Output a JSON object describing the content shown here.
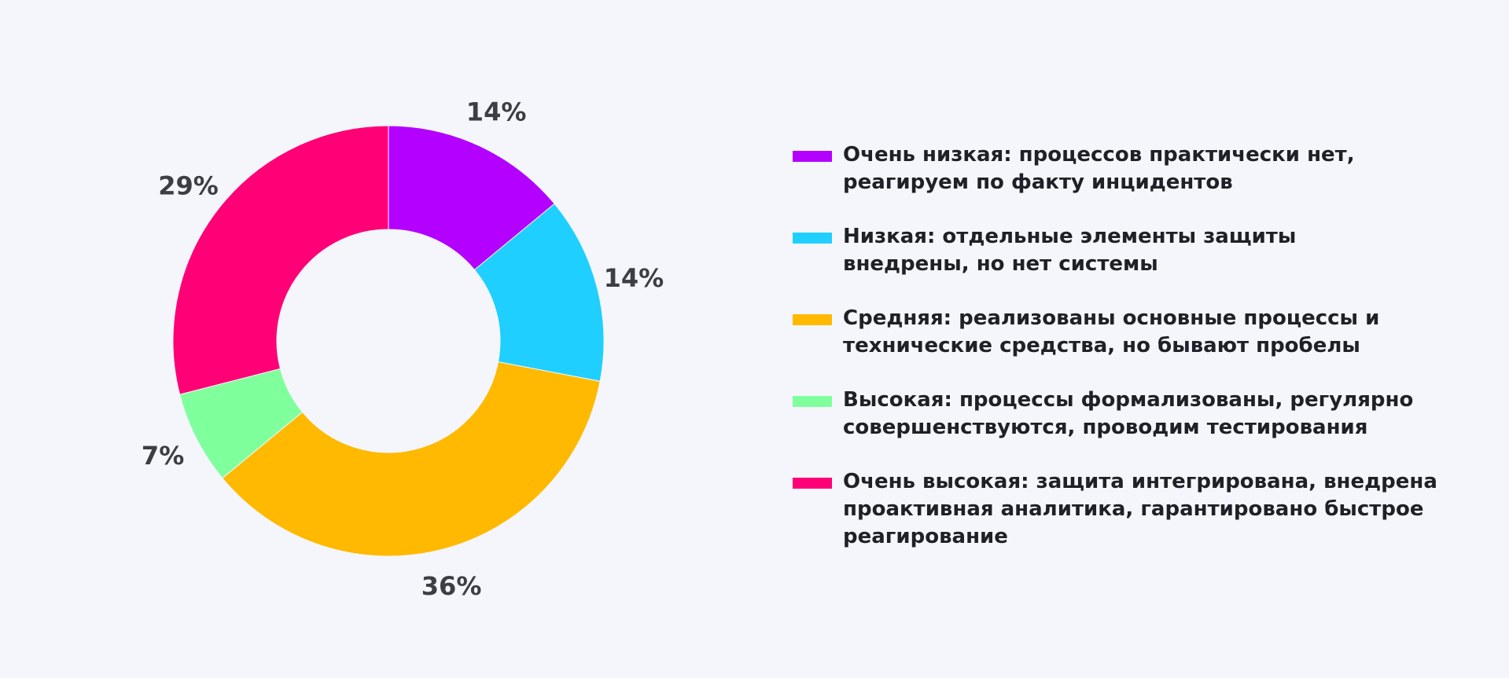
{
  "colors": {
    "background": "#f5f6fb",
    "label_text": "#3d3d45",
    "legend_text": "#202028"
  },
  "chart_data": {
    "type": "pie",
    "variant": "donut",
    "legend_placement": "right",
    "slices": [
      {
        "value": 14,
        "label": "14%",
        "color": "#b300ff",
        "legend_lines": [
          "Очень низкая: процессов практически нет,",
          "реагируем по факту инцидентов"
        ]
      },
      {
        "value": 14,
        "label": "14%",
        "color": "#1fcfff",
        "legend_lines": [
          "Низкая: отдельные элементы защиты",
          "внедрены, но нет системы"
        ]
      },
      {
        "value": 36,
        "label": "36%",
        "color": "#ffb900",
        "legend_lines": [
          "Средняя: реализованы основные процессы и",
          "технические средства, но бывают пробелы"
        ]
      },
      {
        "value": 7,
        "label": "7%",
        "color": "#80ff9d",
        "legend_lines": [
          "Высокая: процессы формализованы, регулярно",
          "совершенствуются, проводим тестирования"
        ]
      },
      {
        "value": 29,
        "label": "29%",
        "color": "#ff0077",
        "legend_lines": [
          "Очень высокая: защита интегрирована, внедрена",
          "проактивная аналитика, гарантировано быстрое",
          "реагирование"
        ]
      }
    ]
  }
}
